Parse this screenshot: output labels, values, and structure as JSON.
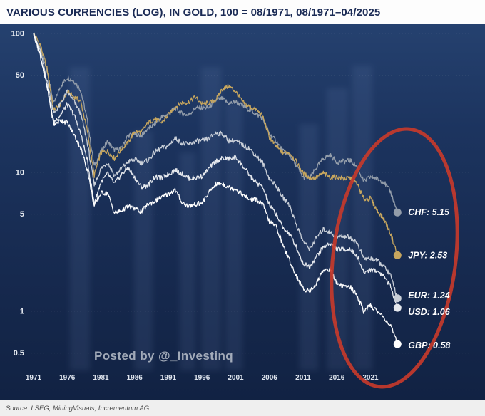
{
  "header": {
    "title": "VARIOUS CURRENCIES (LOG), IN GOLD, 100 = 08/1971, 08/1971–04/2025"
  },
  "watermark": {
    "text": "Posted by @_Investinq"
  },
  "footer": {
    "source": "Source: LSEG, MiningVisuals, Incrementum AG"
  },
  "colors": {
    "title_text": "#1b2b55",
    "chart_background_top": "#25416f",
    "chart_background_bottom": "#112243",
    "annotation_circle": "#c6392b",
    "watermark": "#c4cad3"
  },
  "chart_data": {
    "type": "line",
    "title": "VARIOUS CURRENCIES (LOG), IN GOLD, 100 = 08/1971, 08/1971–04/2025",
    "y_scale": "log",
    "ylim": [
      0.5,
      100
    ],
    "y_ticks": [
      "100",
      "50",
      "10",
      "5",
      "1",
      "0.5"
    ],
    "x_ticks": [
      "1971",
      "1976",
      "1981",
      "1986",
      "1991",
      "1996",
      "2001",
      "2006",
      "2011",
      "2016",
      "2021"
    ],
    "years_range": [
      1971,
      2025
    ],
    "legend_position": "end-of-line labels",
    "grid": "faint horizontal",
    "annotation": {
      "shape": "ellipse",
      "circle_color": "#c6392b",
      "highlights": "2016–2025 decline of all currencies"
    },
    "series": [
      {
        "name": "CHF",
        "end_label": "CHF: 5.15",
        "end_value": 5.15,
        "color": "#939daa",
        "values": [
          100,
          75.6,
          54.6,
          31.1,
          41.6,
          48,
          45.5,
          39,
          23.4,
          11.1,
          14,
          16.7,
          14.5,
          14.9,
          18.4,
          18.9,
          18.3,
          20.7,
          22.3,
          25,
          26.2,
          29.1,
          26.5,
          25.9,
          29.1,
          29.1,
          29.2,
          33,
          34,
          31.3,
          32.3,
          30.2,
          28.3,
          26.4,
          24.6,
          18.9,
          16.8,
          14.2,
          13.3,
          11.2,
          9.2,
          9.1,
          10.9,
          12.6,
          13.3,
          11.9,
          12,
          12.2,
          11,
          8.6,
          9.3,
          9,
          8.5,
          7.2,
          5.15
        ]
      },
      {
        "name": "JPY",
        "end_label": "JPY: 2.53",
        "end_value": 2.53,
        "color": "#c7a65e",
        "values": [
          100,
          83,
          56,
          28,
          31,
          38,
          35,
          32.5,
          19.7,
          9.5,
          13.9,
          14.2,
          12.6,
          14.6,
          16.3,
          19.7,
          19.4,
          22.8,
          24.3,
          22.7,
          25.9,
          29.5,
          31.8,
          32,
          34.9,
          31.1,
          31.6,
          33,
          39.8,
          41.8,
          38.2,
          32.1,
          29.8,
          28.3,
          25.5,
          17.9,
          15.3,
          13.9,
          13.9,
          11.9,
          9.9,
          9.1,
          9.2,
          9.9,
          9.2,
          9.3,
          9,
          9.1,
          8.3,
          6.4,
          6.5,
          5.3,
          4.6,
          3.6,
          2.53
        ]
      },
      {
        "name": "EUR",
        "end_label": "EUR: 1.24",
        "end_value": 1.24,
        "color": "#c9cfd8",
        "values": [
          100,
          74,
          46,
          26.5,
          31,
          38,
          32.5,
          26.6,
          16.2,
          8.1,
          10.6,
          11.8,
          9.5,
          10.6,
          11.9,
          12.4,
          11.7,
          12.2,
          14,
          15,
          15.5,
          17.7,
          16.2,
          15.9,
          16.8,
          16.9,
          17.5,
          19.2,
          18.9,
          16.9,
          16.8,
          15.7,
          14.9,
          13.2,
          11.7,
          9,
          8,
          6.6,
          5.8,
          4.2,
          3.2,
          2.8,
          3.4,
          3.9,
          3.7,
          3.4,
          3.5,
          3.4,
          3.1,
          2.4,
          2.4,
          2.3,
          2.1,
          1.8,
          1.24
        ]
      },
      {
        "name": "USD",
        "end_label": "USD: 1.06",
        "end_value": 1.06,
        "color": "#e6e9ee",
        "values": [
          100,
          70,
          42,
          23,
          26,
          31,
          26,
          19,
          12,
          6,
          8.5,
          9.8,
          8.3,
          9.6,
          10.8,
          9.2,
          7.8,
          8.1,
          9.3,
          9.1,
          9.7,
          10.4,
          9.8,
          9.1,
          9.1,
          9.4,
          10.6,
          12,
          12.6,
          12.5,
          12.9,
          11.2,
          9.6,
          8.5,
          7.8,
          5.8,
          5,
          4,
          3.6,
          2.9,
          2.2,
          2.1,
          2.5,
          2.9,
          3.1,
          2.8,
          2.8,
          2.8,
          2.5,
          1.9,
          2,
          1.95,
          1.8,
          1.5,
          1.06
        ]
      },
      {
        "name": "GBP",
        "end_label": "GBP: 0.58",
        "end_value": 0.58,
        "color": "#ffffff",
        "values": [
          100,
          70,
          42,
          22,
          23.7,
          22.9,
          18.7,
          15,
          10.4,
          5.7,
          7.1,
          7.1,
          5.1,
          5.3,
          5.7,
          5.5,
          5.2,
          5.9,
          6.2,
          6.6,
          7,
          7.5,
          6.1,
          5.7,
          5.9,
          6,
          7.1,
          8.2,
          8.3,
          7.8,
          7.6,
          6.9,
          6.4,
          6.4,
          5.9,
          4.4,
          4.1,
          3,
          2.3,
          1.8,
          1.45,
          1.4,
          1.6,
          2,
          2,
          1.6,
          1.5,
          1.5,
          1.3,
          1,
          1.1,
          1,
          0.9,
          0.78,
          0.58
        ]
      }
    ]
  }
}
